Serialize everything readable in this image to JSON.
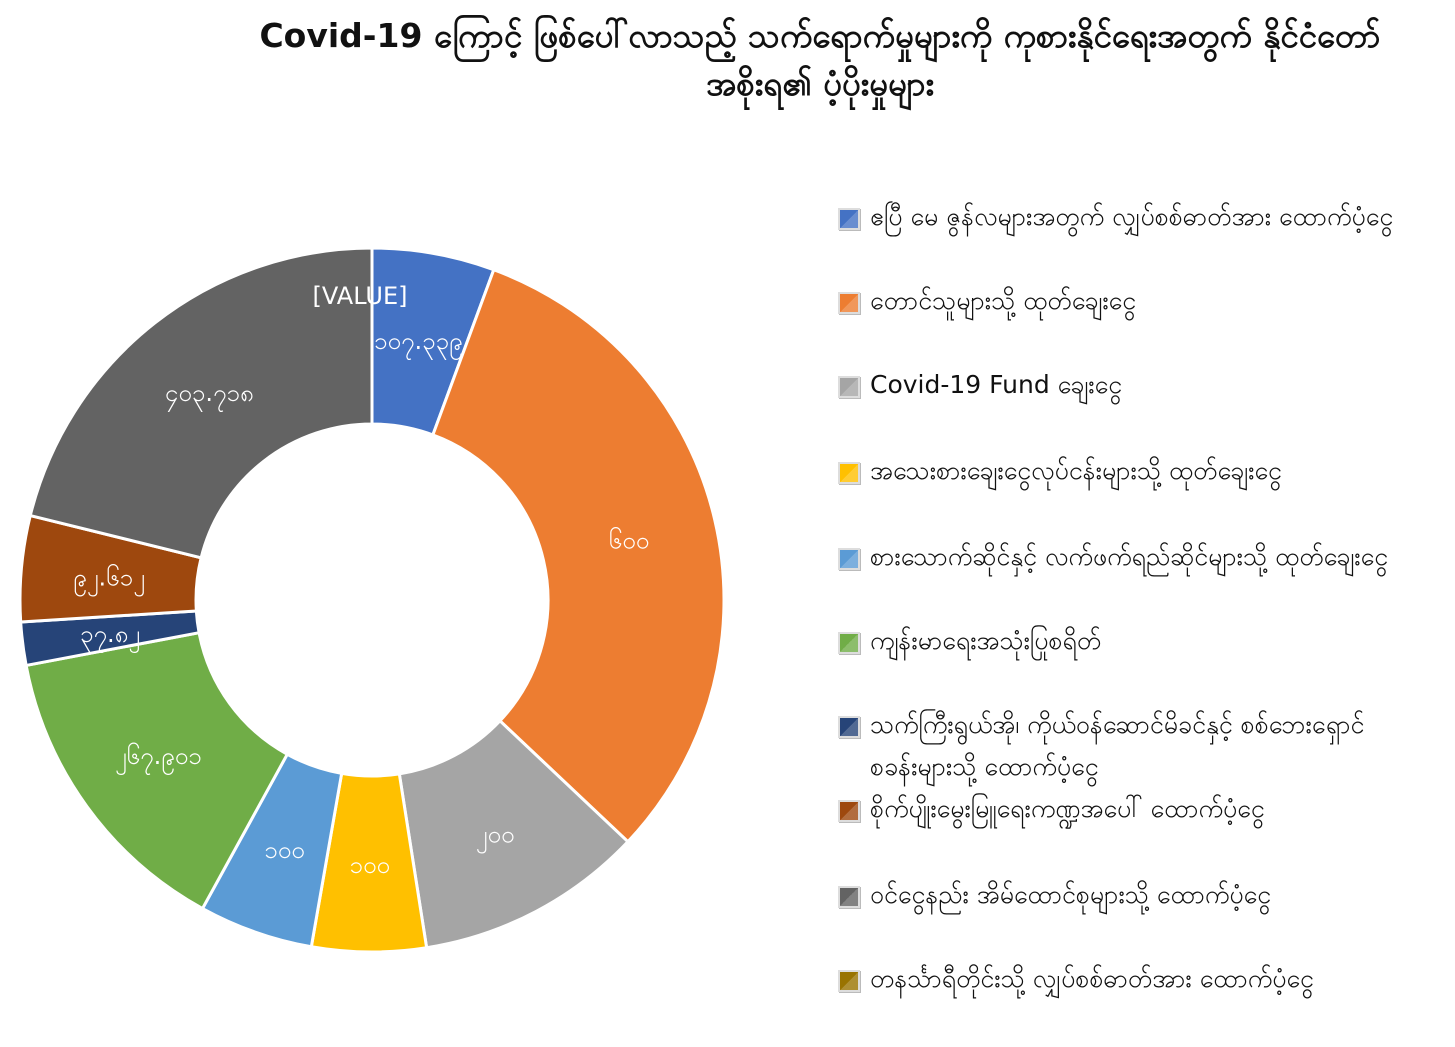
{
  "chart_data": {
    "type": "pie",
    "donut": true,
    "title": "Covid-19 ကြောင့် ဖြစ်ပေါ်လာသည့် သက်ရောက်မှုများကို ကုစားနိုင်ရေးအတွက် နိုင်ငံတော်အစိုးရ၏ ပံ့ပိုးမှုများ",
    "legend_position": "right",
    "slices": [
      {
        "name": "ဧပြီ မေ ဇွန်လများအတွက် လျှပ်စစ်ဓာတ်အား ထောက်ပံ့ငွေ",
        "value": 107.339,
        "label": "၁၀၇.၃၃၉",
        "color": "#4472c4"
      },
      {
        "name": "တောင်သူများသို့ ထုတ်ချေးငွေ",
        "value": 600,
        "label": "၆၀၀",
        "color": "#ed7d31"
      },
      {
        "name": "Covid-19 Fund ချေးငွေ",
        "value": 200,
        "label": "၂၀၀",
        "color": "#a5a5a5"
      },
      {
        "name": "အသေးစားချေးငွေလုပ်ငန်းများသို့ ထုတ်ချေးငွေ",
        "value": 100,
        "label": "၁၀၀",
        "color": "#ffc000"
      },
      {
        "name": "စားသောက်ဆိုင်နှင့် လက်ဖက်ရည်ဆိုင်များသို့ ထုတ်ချေးငွေ",
        "value": 100,
        "label": "၁၀၀",
        "color": "#5b9bd5"
      },
      {
        "name": "ကျန်းမာရေးအသုံးပြုစရိတ်",
        "value": 267.901,
        "label": "၂၆၇.၉၀၁",
        "color": "#70ad47"
      },
      {
        "name": "သက်ကြီးရွယ်အို၊ ကိုယ်ဝန်ဆောင်မိခင်နှင့် စစ်ဘေးရှောင်စခန်းများသို့ ထောက်ပံ့ငွေ",
        "value": 37.82,
        "label": "၃၇.၈၂",
        "color": "#264478"
      },
      {
        "name": "စိုက်ပျိုးမွေးမြူရေးကဏ္ဍအပေါ် ထောက်ပံ့ငွေ",
        "value": 92.612,
        "label": "၉၂.၆၁၂",
        "color": "#9e480e"
      },
      {
        "name": "ဝင်ငွေနည်း အိမ်ထောင်စုများသို့ ထောက်ပံ့ငွေ",
        "value": 403.718,
        "label": "၄၀၃.၇၁၈",
        "color": "#636363"
      },
      {
        "name": "တနင်္သာရီတိုင်းသို့ လျှပ်စစ်ဓာတ်အား ထောက်ပံ့ငွေ",
        "value": 0,
        "label": "[VALUE]",
        "color": "#997300"
      }
    ]
  }
}
